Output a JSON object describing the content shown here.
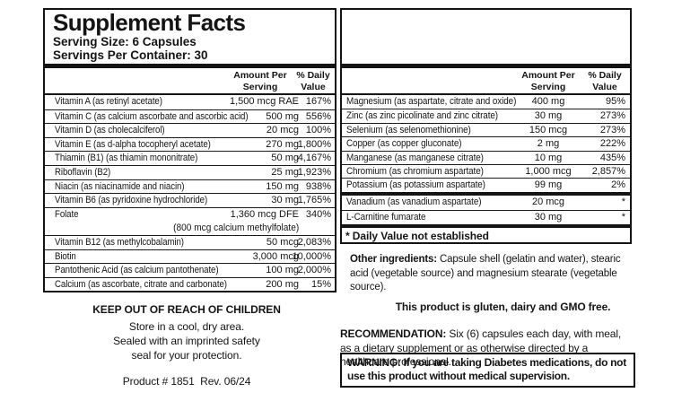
{
  "colors": {
    "ink": "#141414",
    "background": "#ffffff"
  },
  "label": {
    "title": "Supplement Facts",
    "serving_size": "Serving Size: 6 Capsules",
    "servings_per_container": "Servings Per Container: 30"
  },
  "columns": {
    "amount_header": "Amount Per\nServing",
    "dv_header": "% Daily\nValue"
  },
  "left_table": {
    "rows": [
      {
        "name": "Vitamin A (as retinyl acetate)",
        "amount": "1,500 mcg RAE",
        "dv": "167%"
      },
      {
        "name": "Vitamin C (as calcium ascorbate and ascorbic acid)",
        "amount": "500 mg",
        "dv": "556%"
      },
      {
        "name": "Vitamin D (as cholecalciferol)",
        "amount": "20 mcg",
        "dv": "100%"
      },
      {
        "name": "Vitamin E (as d-alpha tocopheryl acetate)",
        "amount": "270 mg",
        "dv": "1,800%"
      },
      {
        "name": "Thiamin (B1) (as thiamin mononitrate)",
        "amount": "50 mg",
        "dv": "4,167%"
      },
      {
        "name": "Riboflavin (B2)",
        "amount": "25 mg",
        "dv": "1,923%"
      },
      {
        "name": "Niacin (as niacinamide and niacin)",
        "amount": "150 mg",
        "dv": "938%"
      },
      {
        "name": "Vitamin B6 (as pyridoxine hydrochloride)",
        "amount": "30 mg",
        "dv": "1,765%"
      },
      {
        "name": "Folate",
        "amount": "1,360 mcg DFE",
        "dv": "340%",
        "sub": "(800 mcg calcium methylfolate)"
      },
      {
        "name": "Vitamin B12 (as methylcobalamin)",
        "amount": "50 mcg",
        "dv": "2,083%"
      },
      {
        "name": "Biotin",
        "amount": "3,000 mcg",
        "dv": "10,000%"
      },
      {
        "name": "Pantothenic Acid (as calcium pantothenate)",
        "amount": "100 mg",
        "dv": "2,000%"
      },
      {
        "name": "Calcium (as ascorbate, citrate and carbonate)",
        "amount": "200 mg",
        "dv": "15%"
      }
    ]
  },
  "right_table": {
    "rows": [
      {
        "name": "Magnesium (as aspartate, citrate and oxide)",
        "amount": "400 mg",
        "dv": "95%"
      },
      {
        "name": "Zinc (as zinc picolinate and zinc citrate)",
        "amount": "30 mg",
        "dv": "273%"
      },
      {
        "name": "Selenium (as selenomethionine)",
        "amount": "150 mcg",
        "dv": "273%"
      },
      {
        "name": "Copper (as copper gluconate)",
        "amount": "2 mg",
        "dv": "222%"
      },
      {
        "name": "Manganese (as manganese citrate)",
        "amount": "10 mg",
        "dv": "435%"
      },
      {
        "name": "Chromium (as chromium aspartate)",
        "amount": "1,000 mcg",
        "dv": "2,857%"
      },
      {
        "name": "Potassium (as potassium aspartate)",
        "amount": "99 mg",
        "dv": "2%"
      }
    ],
    "starred_rows": [
      {
        "name": "Vanadium (as vanadium aspartate)",
        "amount": "20 mcg",
        "dv": "*"
      },
      {
        "name": "L-Carnitine fumarate",
        "amount": "30 mg",
        "dv": "*"
      }
    ],
    "footnote": "* Daily Value not established"
  },
  "right_notes": {
    "other_ingredients_label": "Other ingredients:",
    "other_ingredients_text": "Capsule shell (gelatin and water), stearic acid (vegetable source) and magnesium stearate (vegetable source).",
    "free_claim": "This product is gluten, dairy and GMO free.",
    "recommendation_label": "RECOMMENDATION:",
    "recommendation_text": "Six (6) capsules each day, with meal, as a dietary supplement or as otherwise directed by a healthcare professional.",
    "warning_label": "WARNING:",
    "warning_text": "If you are taking Diabetes medications, do not use this product without medical supervision."
  },
  "left_notes": {
    "keep_out": "KEEP OUT OF REACH OF CHILDREN",
    "line1": "Store in a cool, dry area.",
    "line2": "Sealed with an imprinted safety",
    "line3": "seal for your protection.",
    "product_info": "Product # 1851  Rev. 06/24"
  }
}
